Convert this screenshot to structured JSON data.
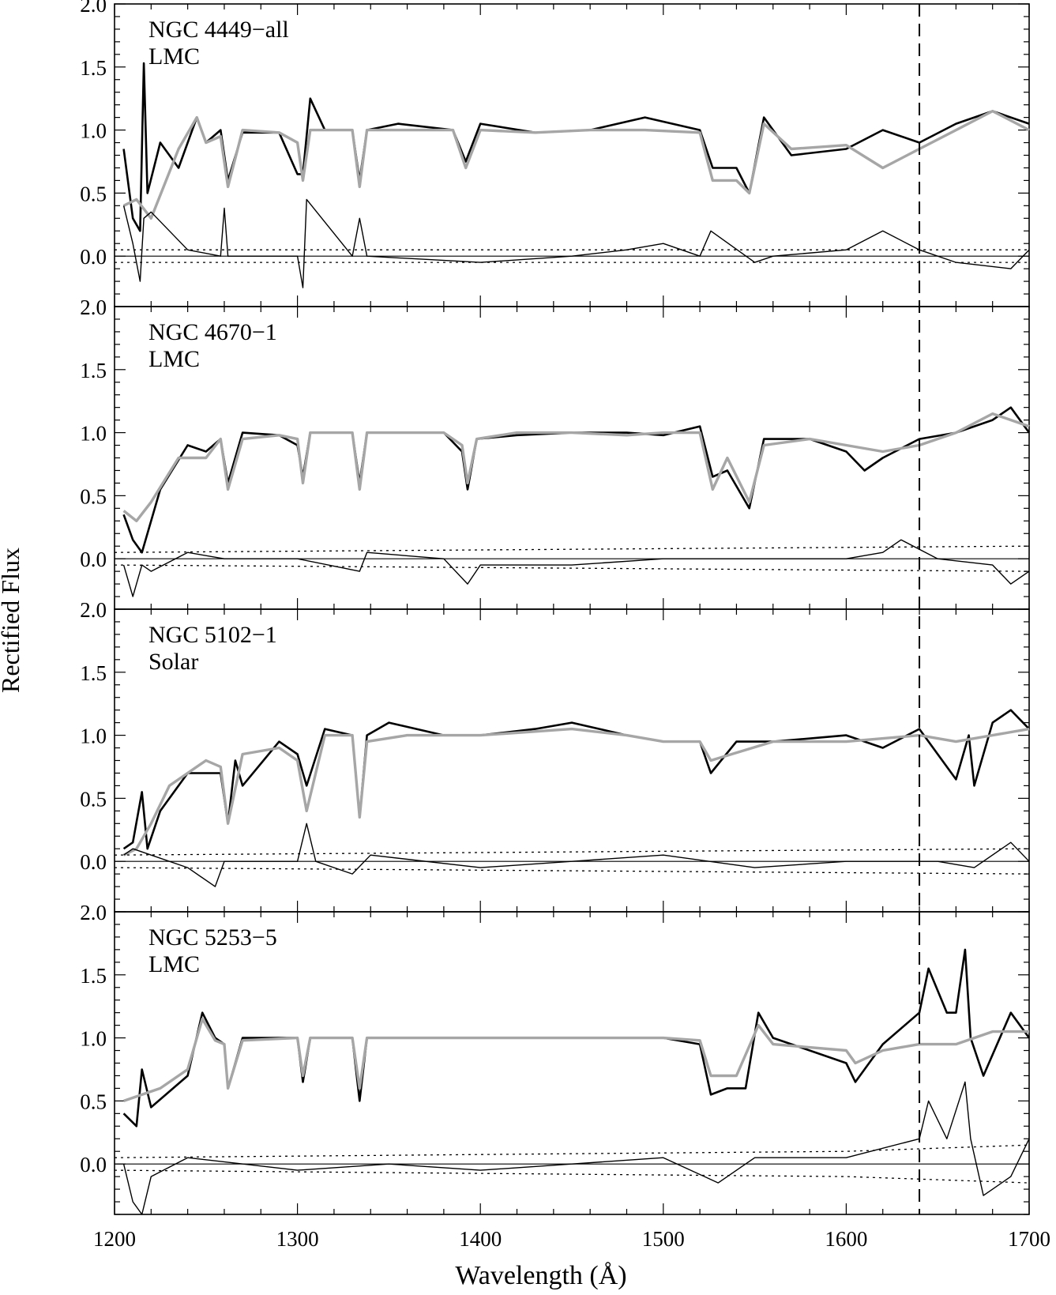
{
  "figure": {
    "ylabel": "Rectified Flux",
    "xlabel": "Wavelength (Å)",
    "dashed_line_x": 1640
  },
  "chart_data": [
    {
      "type": "line",
      "panel": 1,
      "annotation": [
        "NGC 4449−all",
        "LMC"
      ],
      "xlim": [
        1200,
        1700
      ],
      "ylim": [
        -0.4,
        2.0
      ],
      "x_ticks": [
        "1200",
        "1300",
        "1400",
        "1500",
        "1600",
        "1700"
      ],
      "y_ticks": [
        "0.0",
        "0.5",
        "1.0",
        "1.5",
        "2.0"
      ],
      "series": [
        {
          "style": "observed (black)",
          "x": [
            1205,
            1210,
            1214,
            1216,
            1218,
            1225,
            1235,
            1245,
            1250,
            1258,
            1262,
            1270,
            1290,
            1300,
            1303,
            1307,
            1315,
            1330,
            1334,
            1338,
            1355,
            1385,
            1392,
            1400,
            1430,
            1460,
            1490,
            1520,
            1527,
            1540,
            1547,
            1555,
            1570,
            1600,
            1620,
            1640,
            1660,
            1680,
            1700
          ],
          "values": [
            0.85,
            0.3,
            0.2,
            1.53,
            0.5,
            0.9,
            0.7,
            1.1,
            0.9,
            1.0,
            0.6,
            0.98,
            0.98,
            0.65,
            0.65,
            1.25,
            1.0,
            1.0,
            0.6,
            1.0,
            1.05,
            1.0,
            0.75,
            1.05,
            0.98,
            1.0,
            1.1,
            1.0,
            0.7,
            0.7,
            0.5,
            1.1,
            0.8,
            0.85,
            1.0,
            0.9,
            1.05,
            1.15,
            1.05
          ]
        },
        {
          "style": "model (gray)",
          "x": [
            1205,
            1212,
            1220,
            1235,
            1245,
            1250,
            1258,
            1262,
            1270,
            1290,
            1300,
            1303,
            1307,
            1330,
            1334,
            1338,
            1355,
            1385,
            1392,
            1400,
            1430,
            1460,
            1490,
            1520,
            1527,
            1540,
            1547,
            1555,
            1570,
            1600,
            1620,
            1640,
            1660,
            1680,
            1700
          ],
          "values": [
            0.4,
            0.45,
            0.3,
            0.85,
            1.1,
            0.9,
            0.95,
            0.55,
            1.0,
            0.98,
            0.9,
            0.6,
            1.0,
            1.0,
            0.55,
            1.0,
            1.0,
            1.0,
            0.7,
            1.0,
            0.98,
            1.0,
            1.0,
            0.98,
            0.6,
            0.6,
            0.5,
            1.05,
            0.85,
            0.88,
            0.7,
            0.85,
            1.0,
            1.15,
            1.0
          ]
        },
        {
          "style": "residual (thin)",
          "x": [
            1205,
            1210,
            1214,
            1216,
            1220,
            1240,
            1258,
            1260,
            1262,
            1300,
            1303,
            1305,
            1330,
            1334,
            1338,
            1400,
            1450,
            1480,
            1500,
            1520,
            1526,
            1550,
            1560,
            1600,
            1620,
            1640,
            1660,
            1690,
            1700
          ],
          "values": [
            0.4,
            0.1,
            -0.2,
            0.3,
            0.35,
            0.05,
            0.0,
            0.38,
            0.0,
            0.0,
            -0.25,
            0.45,
            0.0,
            0.3,
            0.0,
            -0.05,
            0.0,
            0.05,
            0.1,
            0.0,
            0.2,
            -0.05,
            0.0,
            0.05,
            0.2,
            0.05,
            -0.05,
            -0.1,
            0.05
          ]
        },
        {
          "style": "error envelope (dotted)",
          "x": [
            1200,
            1700
          ],
          "values": [
            0.05,
            0.05
          ]
        }
      ]
    },
    {
      "type": "line",
      "panel": 2,
      "annotation": [
        "NGC 4670−1",
        "LMC"
      ],
      "xlim": [
        1200,
        1700
      ],
      "ylim": [
        -0.4,
        2.0
      ],
      "x_ticks": [
        "1200",
        "1300",
        "1400",
        "1500",
        "1600",
        "1700"
      ],
      "y_ticks": [
        "0.0",
        "0.5",
        "1.0",
        "1.5",
        "2.0"
      ],
      "series": [
        {
          "style": "observed (black)",
          "x": [
            1205,
            1210,
            1215,
            1225,
            1240,
            1250,
            1258,
            1262,
            1270,
            1290,
            1300,
            1303,
            1307,
            1330,
            1334,
            1338,
            1380,
            1390,
            1393,
            1398,
            1420,
            1450,
            1480,
            1500,
            1520,
            1527,
            1535,
            1547,
            1555,
            1580,
            1600,
            1610,
            1620,
            1640,
            1660,
            1680,
            1690,
            1700
          ],
          "values": [
            0.35,
            0.15,
            0.05,
            0.55,
            0.9,
            0.85,
            0.95,
            0.6,
            1.0,
            0.98,
            0.9,
            0.65,
            1.0,
            1.0,
            0.6,
            1.0,
            1.0,
            0.85,
            0.55,
            0.95,
            0.98,
            1.0,
            1.0,
            0.98,
            1.05,
            0.65,
            0.7,
            0.4,
            0.95,
            0.95,
            0.85,
            0.7,
            0.8,
            0.95,
            1.0,
            1.1,
            1.2,
            1.0
          ]
        },
        {
          "style": "model (gray)",
          "x": [
            1205,
            1212,
            1220,
            1235,
            1250,
            1258,
            1262,
            1270,
            1290,
            1300,
            1303,
            1307,
            1330,
            1334,
            1338,
            1380,
            1390,
            1393,
            1398,
            1420,
            1450,
            1480,
            1500,
            1520,
            1527,
            1535,
            1547,
            1555,
            1580,
            1600,
            1620,
            1640,
            1660,
            1680,
            1700
          ],
          "values": [
            0.38,
            0.3,
            0.45,
            0.8,
            0.8,
            0.95,
            0.55,
            0.95,
            0.98,
            0.95,
            0.6,
            1.0,
            1.0,
            0.55,
            1.0,
            1.0,
            0.9,
            0.6,
            0.95,
            1.0,
            1.0,
            0.98,
            1.0,
            1.0,
            0.55,
            0.8,
            0.45,
            0.9,
            0.95,
            0.9,
            0.85,
            0.9,
            1.0,
            1.15,
            1.05
          ]
        },
        {
          "style": "residual (thin)",
          "x": [
            1205,
            1210,
            1215,
            1220,
            1240,
            1260,
            1300,
            1334,
            1338,
            1380,
            1393,
            1400,
            1450,
            1500,
            1550,
            1600,
            1620,
            1630,
            1650,
            1680,
            1690,
            1700
          ],
          "values": [
            -0.05,
            -0.3,
            -0.05,
            -0.1,
            0.05,
            0.0,
            0.0,
            -0.1,
            0.05,
            0.0,
            -0.2,
            -0.05,
            -0.05,
            0.0,
            0.0,
            0.0,
            0.05,
            0.15,
            0.0,
            -0.05,
            -0.2,
            -0.1
          ]
        },
        {
          "style": "error envelope (dotted)",
          "x": [
            1200,
            1700
          ],
          "values": [
            0.05,
            0.1
          ]
        }
      ]
    },
    {
      "type": "line",
      "panel": 3,
      "annotation": [
        "NGC 5102−1",
        "Solar"
      ],
      "xlim": [
        1200,
        1700
      ],
      "ylim": [
        -0.4,
        2.0
      ],
      "x_ticks": [
        "1200",
        "1300",
        "1400",
        "1500",
        "1600",
        "1700"
      ],
      "y_ticks": [
        "0.0",
        "0.5",
        "1.0",
        "1.5",
        "2.0"
      ],
      "series": [
        {
          "style": "observed (black)",
          "x": [
            1205,
            1210,
            1215,
            1218,
            1225,
            1240,
            1258,
            1262,
            1266,
            1270,
            1290,
            1300,
            1305,
            1315,
            1330,
            1334,
            1338,
            1350,
            1380,
            1400,
            1430,
            1450,
            1480,
            1500,
            1520,
            1526,
            1540,
            1560,
            1600,
            1620,
            1640,
            1660,
            1667,
            1670,
            1680,
            1690,
            1700
          ],
          "values": [
            0.1,
            0.15,
            0.55,
            0.1,
            0.4,
            0.7,
            0.7,
            0.3,
            0.8,
            0.6,
            0.95,
            0.85,
            0.6,
            1.05,
            1.0,
            0.35,
            1.0,
            1.1,
            1.0,
            1.0,
            1.05,
            1.1,
            1.0,
            0.95,
            0.95,
            0.7,
            0.95,
            0.95,
            1.0,
            0.9,
            1.05,
            0.65,
            1.0,
            0.6,
            1.1,
            1.2,
            1.05
          ]
        },
        {
          "style": "model (gray)",
          "x": [
            1205,
            1212,
            1220,
            1230,
            1250,
            1258,
            1262,
            1270,
            1290,
            1300,
            1305,
            1315,
            1330,
            1334,
            1338,
            1360,
            1400,
            1450,
            1480,
            1500,
            1520,
            1526,
            1560,
            1600,
            1640,
            1660,
            1680,
            1700
          ],
          "values": [
            0.05,
            0.1,
            0.3,
            0.6,
            0.8,
            0.75,
            0.3,
            0.85,
            0.9,
            0.8,
            0.4,
            1.0,
            1.0,
            0.35,
            0.95,
            1.0,
            1.0,
            1.05,
            1.0,
            0.95,
            0.95,
            0.8,
            0.95,
            0.95,
            1.0,
            0.95,
            1.0,
            1.05
          ]
        },
        {
          "style": "residual (thin)",
          "x": [
            1205,
            1210,
            1220,
            1240,
            1255,
            1260,
            1300,
            1305,
            1310,
            1330,
            1340,
            1400,
            1450,
            1500,
            1550,
            1600,
            1650,
            1670,
            1690,
            1700
          ],
          "values": [
            0.05,
            0.1,
            0.05,
            -0.05,
            -0.2,
            0.0,
            0.0,
            0.3,
            0.0,
            -0.1,
            0.05,
            -0.05,
            0.0,
            0.05,
            -0.05,
            0.0,
            0.0,
            -0.05,
            0.15,
            0.0
          ]
        },
        {
          "style": "error envelope (dotted)",
          "x": [
            1200,
            1700
          ],
          "values": [
            0.05,
            0.1
          ]
        }
      ]
    },
    {
      "type": "line",
      "panel": 4,
      "annotation": [
        "NGC 5253−5",
        "LMC"
      ],
      "xlim": [
        1200,
        1700
      ],
      "ylim": [
        -0.4,
        2.0
      ],
      "x_ticks": [
        "1200",
        "1300",
        "1400",
        "1500",
        "1600",
        "1700"
      ],
      "y_ticks": [
        "0.0",
        "0.5",
        "1.0",
        "1.5",
        "2.0"
      ],
      "series": [
        {
          "style": "observed (black)",
          "x": [
            1205,
            1212,
            1215,
            1220,
            1240,
            1248,
            1255,
            1260,
            1262,
            1270,
            1300,
            1303,
            1307,
            1330,
            1334,
            1338,
            1400,
            1450,
            1500,
            1520,
            1526,
            1535,
            1545,
            1552,
            1560,
            1600,
            1605,
            1620,
            1640,
            1645,
            1655,
            1660,
            1665,
            1668,
            1675,
            1690,
            1700
          ],
          "values": [
            0.4,
            0.3,
            0.75,
            0.45,
            0.7,
            1.2,
            1.0,
            0.95,
            0.6,
            1.0,
            1.0,
            0.65,
            1.0,
            1.0,
            0.5,
            1.0,
            1.0,
            1.0,
            1.0,
            0.95,
            0.55,
            0.6,
            0.6,
            1.2,
            1.0,
            0.8,
            0.65,
            0.95,
            1.2,
            1.55,
            1.2,
            1.2,
            1.7,
            1.0,
            0.7,
            1.2,
            1.0
          ]
        },
        {
          "style": "model (gray)",
          "x": [
            1205,
            1215,
            1225,
            1240,
            1248,
            1255,
            1260,
            1262,
            1270,
            1300,
            1303,
            1307,
            1330,
            1334,
            1338,
            1400,
            1450,
            1500,
            1520,
            1526,
            1540,
            1552,
            1560,
            1600,
            1605,
            1620,
            1640,
            1660,
            1680,
            1700
          ],
          "values": [
            0.5,
            0.55,
            0.6,
            0.75,
            1.15,
            0.98,
            0.95,
            0.6,
            0.98,
            1.0,
            0.7,
            1.0,
            1.0,
            0.6,
            1.0,
            1.0,
            1.0,
            1.0,
            0.98,
            0.7,
            0.7,
            1.1,
            0.95,
            0.9,
            0.8,
            0.9,
            0.95,
            0.95,
            1.05,
            1.05
          ]
        },
        {
          "style": "residual (thin)",
          "x": [
            1205,
            1210,
            1215,
            1220,
            1240,
            1300,
            1350,
            1400,
            1450,
            1500,
            1530,
            1550,
            1600,
            1640,
            1645,
            1655,
            1665,
            1668,
            1675,
            1690,
            1700
          ],
          "values": [
            0.0,
            -0.3,
            -0.4,
            -0.1,
            0.05,
            -0.05,
            0.0,
            -0.05,
            0.0,
            0.05,
            -0.15,
            0.05,
            0.05,
            0.2,
            0.5,
            0.2,
            0.65,
            0.2,
            -0.25,
            -0.1,
            0.2
          ]
        },
        {
          "style": "error envelope (dotted)",
          "x": [
            1200,
            1600,
            1700
          ],
          "values": [
            0.05,
            0.1,
            0.15
          ]
        }
      ]
    }
  ]
}
